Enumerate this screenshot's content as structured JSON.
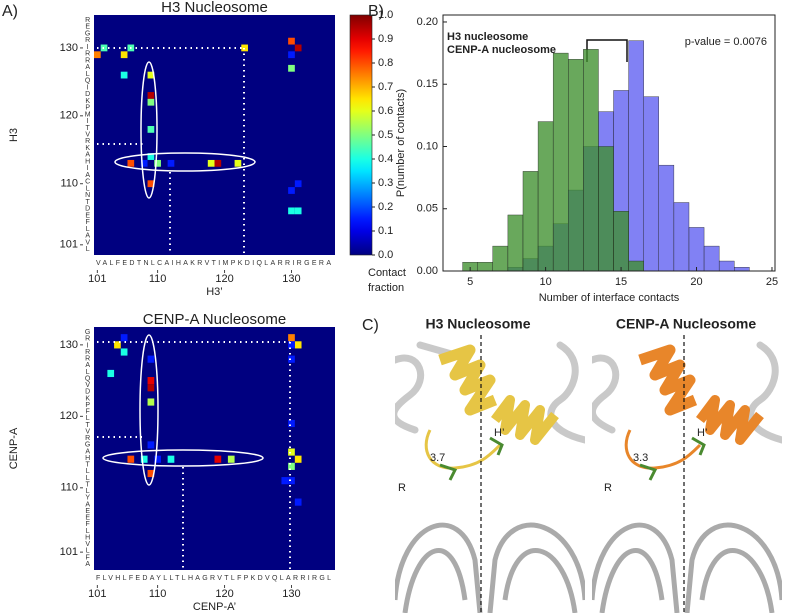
{
  "chart_data": [
    {
      "type": "heatmap",
      "panel_label": "A)",
      "title": "H3 Nucleosome",
      "x_label": "H3’",
      "y_label": "H3",
      "x_sequence": "VALFEDTNLCAIHAKRVTIMPKDIQLARRIRGERA",
      "y_sequence": "REGRIRRALQIDKPMITVRKAHIACLNTDEFLAVL",
      "xlim": [
        100.5,
        136.5
      ],
      "ylim": [
        99.5,
        134.85
      ],
      "xticks": [
        101,
        110,
        120,
        130
      ],
      "yticks": [
        101,
        110,
        120,
        130
      ],
      "x": [
        101,
        102,
        106,
        105,
        123,
        130,
        131,
        130,
        130,
        105,
        109,
        109,
        109,
        109,
        109,
        110,
        109,
        106,
        108,
        112,
        118,
        119,
        122,
        131,
        130,
        130,
        131
      ],
      "y": [
        129,
        130,
        130,
        129,
        130,
        131,
        130,
        129,
        127,
        126,
        126,
        123,
        122,
        118,
        114,
        113,
        110,
        113,
        113,
        113,
        113,
        113,
        113,
        110,
        109,
        106,
        106
      ],
      "values": [
        0.75,
        0.45,
        0.45,
        0.65,
        0.65,
        0.8,
        0.95,
        0.15,
        0.5,
        0.4,
        0.6,
        0.95,
        0.5,
        0.45,
        0.4,
        0.5,
        0.8,
        0.8,
        0.15,
        0.15,
        0.6,
        0.95,
        0.6,
        0.15,
        0.15,
        0.4,
        0.4
      ],
      "colormap": "jet",
      "colorbar": {
        "lim": [
          0,
          1
        ],
        "ticks": [
          {
            "value": 0,
            "label": "0.0"
          },
          0.1,
          0.2,
          0.3,
          0.4,
          0.5,
          0.6,
          0.7,
          0.8,
          0.9,
          {
            "value": 1,
            "label": "1.0"
          }
        ],
        "label": [
          "Contact",
          "fraction"
        ]
      }
    },
    {
      "type": "heatmap",
      "title": "CENP-A Nucleosome",
      "x_label": "CENP-A’",
      "y_label": "CENP-A",
      "x_sequence": "FLVHLFEDAYLLTLHAGRVTLFPKDVQLARRIRGL",
      "y_sequence": "GRIRRALQVDKPFLTVRGAHTLLTLYAEEFLHVLFA",
      "xlim": [
        100.5,
        136.5
      ],
      "ylim": [
        98.5,
        132.5
      ],
      "xticks": [
        101,
        110,
        120,
        130
      ],
      "yticks": [
        101,
        110,
        120,
        130
      ],
      "x": [
        104,
        105,
        105,
        103,
        109,
        109,
        109,
        109,
        109,
        109,
        106,
        108,
        110,
        112,
        119,
        121,
        130,
        131,
        130,
        130,
        130,
        130,
        131,
        130,
        130,
        129,
        131
      ],
      "y": [
        130,
        131,
        129,
        126,
        128,
        125,
        124,
        122,
        116,
        112,
        114,
        114,
        114,
        114,
        114,
        114,
        131,
        130,
        130,
        128,
        119,
        115,
        114,
        113,
        111,
        111,
        108
      ],
      "values": [
        0.65,
        0.15,
        0.4,
        0.4,
        0.15,
        0.9,
        0.95,
        0.55,
        0.15,
        0.8,
        0.8,
        0.4,
        0.15,
        0.4,
        0.9,
        0.55,
        0.75,
        0.65,
        0.15,
        0.15,
        0.15,
        0.6,
        0.65,
        0.5,
        0.15,
        0.15,
        0.15
      ],
      "colormap": "jet"
    },
    {
      "type": "histogram",
      "panel_label": "B)",
      "x_label": "Number of interface contacts",
      "y_label": "P(number of contacts)",
      "bins": [
        4.5,
        5.5,
        6.5,
        7.5,
        8.5,
        9.5,
        10.5,
        11.5,
        12.5,
        13.5,
        14.5,
        15.5,
        16.5,
        17.5,
        18.5,
        19.5,
        20.5,
        21.5,
        22.5,
        23.5
      ],
      "series": [
        {
          "name": "H3 nucleosome",
          "color": "#6b6bf2",
          "values": [
            0,
            0,
            0,
            0.003,
            0.01,
            0.02,
            0.038,
            0.065,
            0.1,
            0.128,
            0.145,
            0.185,
            0.14,
            0.085,
            0.055,
            0.035,
            0.02,
            0.008,
            0.003
          ]
        },
        {
          "name": "CENP-A nucleosome",
          "color": "#3f8f2e",
          "values": [
            0.007,
            0.007,
            0.02,
            0.045,
            0.08,
            0.12,
            0.175,
            0.17,
            0.178,
            0.1,
            0.048,
            0.008,
            0,
            0,
            0,
            0,
            0,
            0,
            0
          ]
        }
      ],
      "xlim": [
        3.2,
        25.2
      ],
      "ylim": [
        0,
        0.2056
      ],
      "xticks": [
        5,
        10,
        15,
        20,
        25
      ],
      "yticks": [
        {
          "value": 0,
          "label": "0.00"
        },
        {
          "value": 0.05,
          "label": "0.05"
        },
        {
          "value": 0.1,
          "label": "0.10"
        },
        {
          "value": 0.15,
          "label": "0.15"
        },
        {
          "value": 0.2,
          "label": "0.20"
        }
      ],
      "annotation": "p-value = 0.0076",
      "grid": false
    }
  ],
  "panel_c": {
    "panel_label": "C)",
    "images": [
      {
        "title": "H3 Nucleosome",
        "labels": [
          "H’",
          "R",
          "3.7"
        ]
      },
      {
        "title": "CENP-A Nucleosome",
        "labels": [
          "H’",
          "R",
          "3.3"
        ]
      }
    ]
  }
}
